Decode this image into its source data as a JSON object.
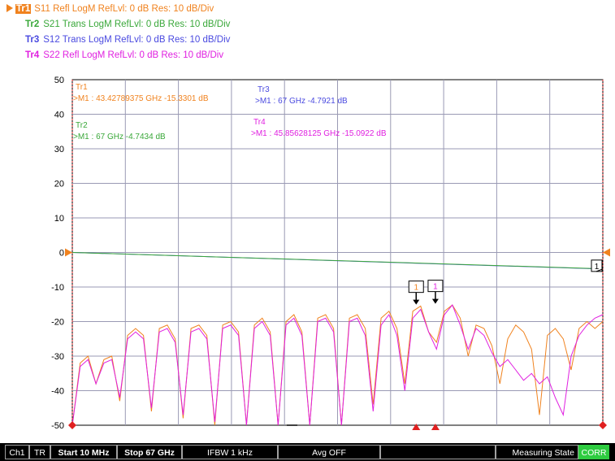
{
  "traces": [
    {
      "id": "Tr1",
      "desc": "S11 Refl LogM RefLvl: 0  dB Res: 10  dB/Div",
      "color": "#f0821e",
      "active": true
    },
    {
      "id": "Tr2",
      "desc": "S21 Trans LogM RefLvl: 0  dB Res: 10  dB/Div",
      "color": "#3aa83a",
      "active": false
    },
    {
      "id": "Tr3",
      "desc": "S12 Trans LogM RefLvl: 0  dB Res: 10  dB/Div",
      "color": "#4a4ae0",
      "active": false
    },
    {
      "id": "Tr4",
      "desc": "S22 Refl LogM RefLvl: 0  dB Res: 10  dB/Div",
      "color": "#e020e0",
      "active": false
    }
  ],
  "status_bar": {
    "channel": "Ch1",
    "tr": "TR",
    "start": "Start 10 MHz",
    "stop": "Stop 67 GHz",
    "ifbw": "IFBW 1 kHz",
    "avg": "Avg OFF",
    "blank": "",
    "state": "Measuring State",
    "corr": "CORR",
    "corr_color": "#2ecc40"
  },
  "chart_data": {
    "type": "line",
    "x_unit": "GHz",
    "xlim": [
      0.01,
      67
    ],
    "ylim": [
      -50,
      50
    ],
    "y_ticks": [
      50,
      40,
      30,
      20,
      10,
      0,
      -10,
      -20,
      -30,
      -40,
      -50
    ],
    "y_tick_labels": [
      "50",
      "40",
      "30",
      "20",
      "10",
      "0",
      "-10",
      "-20",
      "-30",
      "-40",
      "-50"
    ],
    "grid": true,
    "reference_level": 0,
    "marker_readouts": [
      {
        "trace": "Tr1",
        "label": "Tr1",
        "text": ">M1  :  43.42789375 GHz  -15.3301  dB",
        "color": "#f0821e"
      },
      {
        "trace": "Tr2",
        "label": "Tr2",
        "text": ">M1  :  67 GHz  -4.7434  dB",
        "color": "#3aa83a"
      },
      {
        "trace": "Tr3",
        "label": "Tr3",
        "text": ">M1  :  67 GHz  -4.7921  dB",
        "color": "#4a4ae0"
      },
      {
        "trace": "Tr4",
        "label": "Tr4",
        "text": ">M1  :  45.85628125 GHz  -15.0922  dB",
        "color": "#e020e0"
      }
    ],
    "markers": [
      {
        "trace": "Tr1",
        "label": "1",
        "x": 43.43,
        "y": -15.33,
        "color": "#f0821e"
      },
      {
        "trace": "Tr4",
        "label": "1",
        "x": 45.86,
        "y": -15.09,
        "color": "#e020e0"
      },
      {
        "trace": "Tr3",
        "label": "1",
        "x": 67,
        "y": -4.79,
        "color": "#4a4ae0"
      }
    ],
    "series": [
      {
        "trace": "Tr1",
        "color": "#f0821e",
        "x": [
          0.01,
          1,
          2,
          3,
          4,
          5,
          6,
          7,
          8,
          9,
          10,
          11,
          12,
          13,
          14,
          15,
          16,
          17,
          18,
          19,
          20,
          21,
          22,
          23,
          24,
          25,
          26,
          27,
          28,
          29,
          30,
          31,
          32,
          33,
          34,
          35,
          36,
          37,
          38,
          39,
          40,
          41,
          42,
          43,
          44,
          45,
          46,
          47,
          48,
          49,
          50,
          51,
          52,
          53,
          54,
          55,
          56,
          57,
          58,
          59,
          60,
          61,
          62,
          63,
          64,
          65,
          66,
          67
        ],
        "values": [
          -50,
          -32,
          -30,
          -38,
          -31,
          -30,
          -43,
          -24,
          -22,
          -24,
          -46,
          -22,
          -21,
          -25,
          -48,
          -22,
          -21,
          -24,
          -50,
          -21,
          -20,
          -23,
          -50,
          -21,
          -19,
          -23,
          -50,
          -20,
          -18,
          -23,
          -50,
          -19,
          -18,
          -22,
          -50,
          -19,
          -18,
          -22,
          -44,
          -19,
          -17,
          -22,
          -38,
          -17,
          -15.5,
          -23,
          -26,
          -17,
          -15.2,
          -19,
          -30,
          -21,
          -22,
          -27,
          -38,
          -25,
          -21,
          -23,
          -28,
          -47,
          -24,
          -22,
          -25,
          -34,
          -22,
          -20,
          -22,
          -20
        ]
      },
      {
        "trace": "Tr4",
        "color": "#e020e0",
        "x": [
          0.01,
          1,
          2,
          3,
          4,
          5,
          6,
          7,
          8,
          9,
          10,
          11,
          12,
          13,
          14,
          15,
          16,
          17,
          18,
          19,
          20,
          21,
          22,
          23,
          24,
          25,
          26,
          27,
          28,
          29,
          30,
          31,
          32,
          33,
          34,
          35,
          36,
          37,
          38,
          39,
          40,
          41,
          42,
          43,
          44,
          45,
          46,
          47,
          48,
          49,
          50,
          51,
          52,
          53,
          54,
          55,
          56,
          57,
          58,
          59,
          60,
          61,
          62,
          63,
          64,
          65,
          66,
          67
        ],
        "values": [
          -50,
          -33,
          -31,
          -38,
          -32,
          -31,
          -42,
          -25,
          -23,
          -25,
          -45,
          -23,
          -22,
          -26,
          -47,
          -23,
          -22,
          -25,
          -49,
          -22,
          -21,
          -24,
          -50,
          -22,
          -20,
          -24,
          -50,
          -21,
          -19,
          -24,
          -50,
          -20,
          -19,
          -23,
          -50,
          -20,
          -19,
          -24,
          -46,
          -21,
          -18,
          -24,
          -40,
          -19,
          -16.5,
          -23,
          -28,
          -18,
          -15.2,
          -21,
          -28,
          -22,
          -24,
          -29,
          -33,
          -31,
          -34,
          -37,
          -35,
          -38,
          -36,
          -42,
          -47,
          -30,
          -24,
          -21,
          -19,
          -18
        ]
      },
      {
        "trace": "Tr3",
        "color": "#4a4ae0",
        "x": [
          0.01,
          67
        ],
        "values": [
          0,
          -4.79
        ]
      },
      {
        "trace": "Tr2",
        "color": "#3aa83a",
        "x": [
          0.01,
          67
        ],
        "values": [
          0,
          -4.74
        ]
      }
    ]
  }
}
